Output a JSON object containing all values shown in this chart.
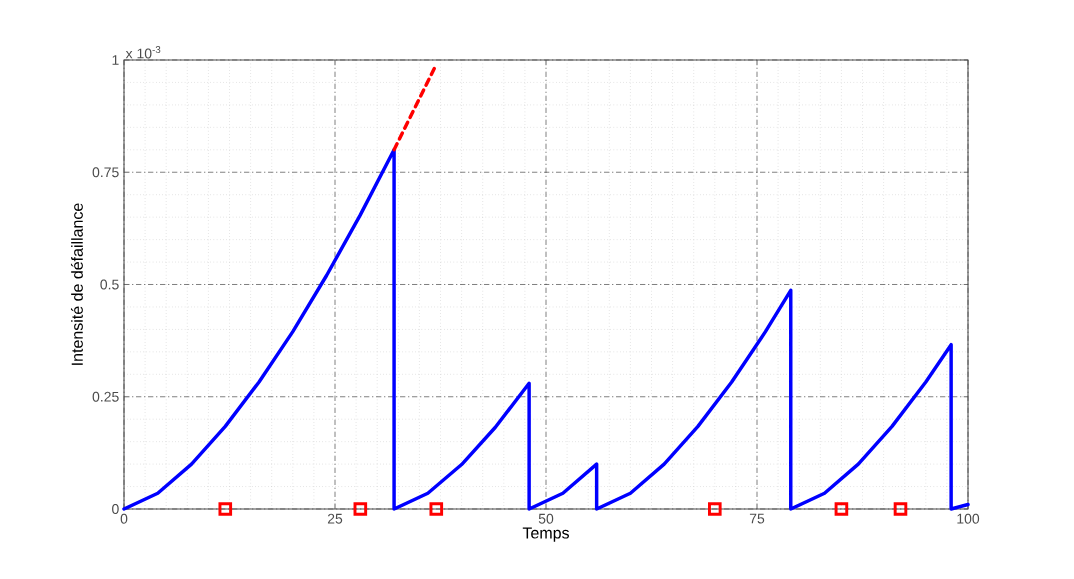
{
  "chart_data": {
    "type": "line",
    "xlabel": "Temps",
    "ylabel": "Intensité de défaillance",
    "annotations": [
      "x 10$^{-3}$"
    ],
    "xlim": [
      0,
      100
    ],
    "ylim": [
      0,
      1
    ],
    "xticks": [
      0,
      25,
      50,
      75,
      100
    ],
    "yticks": [
      0,
      0.25,
      0.5,
      0.75,
      1
    ],
    "grid": true,
    "series": [
      {
        "color": "#0000ff",
        "line_style": "solid",
        "marker": "none",
        "x": [
          0,
          4,
          8,
          12,
          16,
          20,
          24,
          28,
          32,
          32,
          36,
          40,
          44,
          48,
          48,
          52,
          56,
          56,
          60,
          64,
          68,
          72,
          76,
          79,
          79,
          83,
          87,
          91,
          95,
          98,
          98,
          100
        ],
        "values": [
          0,
          0.035,
          0.1,
          0.184,
          0.283,
          0.395,
          0.52,
          0.655,
          0.8,
          0,
          0.035,
          0.099,
          0.182,
          0.28,
          0,
          0.035,
          0.1,
          0,
          0.035,
          0.1,
          0.184,
          0.283,
          0.395,
          0.487,
          0,
          0.035,
          0.1,
          0.184,
          0.283,
          0.366,
          0,
          0.01
        ]
      },
      {
        "color": "#ff0000",
        "line_style": "dashed",
        "marker": "none",
        "x": [
          32,
          34.5,
          37
        ],
        "values": [
          0.8,
          0.895,
          0.99
        ]
      },
      {
        "type": "scatter",
        "color": "#ff0000",
        "marker": "square",
        "x": [
          12,
          28,
          37,
          70,
          85,
          92
        ],
        "values": [
          0,
          0,
          0,
          0,
          0,
          0
        ]
      }
    ]
  }
}
